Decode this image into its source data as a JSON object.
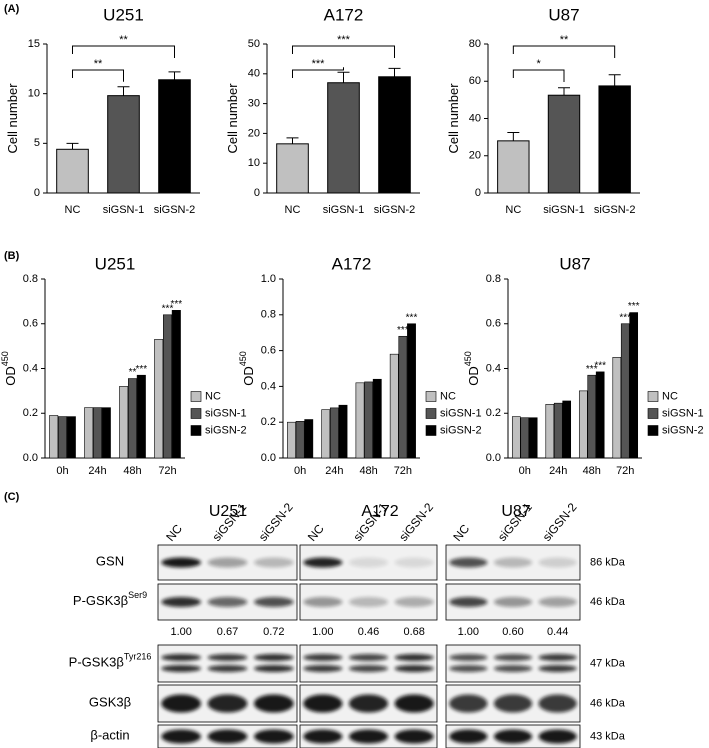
{
  "panels": [
    "(A)",
    "(B)",
    "(C)"
  ],
  "chart_data": [
    {
      "type": "bar",
      "title": "U251",
      "ylabel": "Cell number",
      "categories": [
        "NC",
        "siGSN-1",
        "siGSN-2"
      ],
      "values": [
        4.4,
        9.8,
        11.4
      ],
      "errors": [
        0.6,
        0.9,
        0.8
      ],
      "colors": [
        "#c0c0c0",
        "#555555",
        "#000000"
      ],
      "ylim": [
        0,
        15
      ],
      "yticks": [
        0,
        5,
        10,
        15
      ],
      "annotations": [
        {
          "from": "NC",
          "to": "siGSN-1",
          "text": "**"
        },
        {
          "from": "NC",
          "to": "siGSN-2",
          "text": "**"
        }
      ]
    },
    {
      "type": "bar",
      "title": "A172",
      "ylabel": "Cell number",
      "categories": [
        "NC",
        "siGSN-1",
        "siGSN-2"
      ],
      "values": [
        16.5,
        37,
        39
      ],
      "errors": [
        2,
        3.5,
        2.8
      ],
      "colors": [
        "#c0c0c0",
        "#555555",
        "#000000"
      ],
      "ylim": [
        0,
        50
      ],
      "yticks": [
        0,
        10,
        20,
        30,
        40,
        50
      ],
      "annotations": [
        {
          "from": "NC",
          "to": "siGSN-1",
          "text": "***"
        },
        {
          "from": "NC",
          "to": "siGSN-2",
          "text": "***"
        }
      ]
    },
    {
      "type": "bar",
      "title": "U87",
      "ylabel": "Cell number",
      "categories": [
        "NC",
        "siGSN-1",
        "siGSN-2"
      ],
      "values": [
        28,
        52.5,
        57.5
      ],
      "errors": [
        4.5,
        4,
        6
      ],
      "colors": [
        "#c0c0c0",
        "#555555",
        "#000000"
      ],
      "ylim": [
        0,
        80
      ],
      "yticks": [
        0,
        20,
        40,
        60,
        80
      ],
      "annotations": [
        {
          "from": "NC",
          "to": "siGSN-1",
          "text": "*"
        },
        {
          "from": "NC",
          "to": "siGSN-2",
          "text": "**"
        }
      ]
    },
    {
      "type": "grouped_bar",
      "title": "U251",
      "ylabel": "OD",
      "ylabel_sup": "450",
      "categories": [
        "0h",
        "24h",
        "48h",
        "72h"
      ],
      "series": [
        {
          "name": "NC",
          "color": "#c0c0c0",
          "values": [
            0.19,
            0.225,
            0.32,
            0.53
          ]
        },
        {
          "name": "siGSN-1",
          "color": "#555555",
          "values": [
            0.185,
            0.225,
            0.355,
            0.64
          ]
        },
        {
          "name": "siGSN-2",
          "color": "#000000",
          "values": [
            0.185,
            0.225,
            0.37,
            0.66
          ]
        }
      ],
      "ylim": [
        0,
        0.8
      ],
      "yticks": [
        {
          "value": 0,
          "label": "0.0"
        },
        0.2,
        0.4,
        0.6,
        0.8
      ],
      "legend": "right",
      "annotations": [
        {
          "category": "48h",
          "series": "siGSN-1",
          "text": "**"
        },
        {
          "category": "48h",
          "series": "siGSN-2",
          "text": "***"
        },
        {
          "category": "72h",
          "series": "siGSN-1",
          "text": "***"
        },
        {
          "category": "72h",
          "series": "siGSN-2",
          "text": "***"
        }
      ]
    },
    {
      "type": "grouped_bar",
      "title": "A172",
      "ylabel": "OD",
      "ylabel_sup": "450",
      "categories": [
        "0h",
        "24h",
        "48h",
        "72h"
      ],
      "series": [
        {
          "name": "NC",
          "color": "#c0c0c0",
          "values": [
            0.2,
            0.27,
            0.42,
            0.58
          ]
        },
        {
          "name": "siGSN-1",
          "color": "#555555",
          "values": [
            0.205,
            0.28,
            0.425,
            0.68
          ]
        },
        {
          "name": "siGSN-2",
          "color": "#000000",
          "values": [
            0.215,
            0.295,
            0.44,
            0.75
          ]
        }
      ],
      "ylim": [
        0,
        1.0
      ],
      "yticks": [
        {
          "value": 0,
          "label": "0.0"
        },
        0.2,
        0.4,
        0.6,
        0.8,
        {
          "value": 1,
          "label": "1.0"
        }
      ],
      "legend": "right",
      "annotations": [
        {
          "category": "72h",
          "series": "siGSN-1",
          "text": "***"
        },
        {
          "category": "72h",
          "series": "siGSN-2",
          "text": "***"
        }
      ]
    },
    {
      "type": "grouped_bar",
      "title": "U87",
      "ylabel": "OD",
      "ylabel_sup": "450",
      "categories": [
        "0h",
        "24h",
        "48h",
        "72h"
      ],
      "series": [
        {
          "name": "NC",
          "color": "#c0c0c0",
          "values": [
            0.185,
            0.24,
            0.3,
            0.45
          ]
        },
        {
          "name": "siGSN-1",
          "color": "#555555",
          "values": [
            0.18,
            0.245,
            0.37,
            0.6
          ]
        },
        {
          "name": "siGSN-2",
          "color": "#000000",
          "values": [
            0.18,
            0.255,
            0.385,
            0.65
          ]
        }
      ],
      "ylim": [
        0,
        0.8
      ],
      "yticks": [
        {
          "value": 0,
          "label": "0.0"
        },
        0.2,
        0.4,
        0.6,
        0.8
      ],
      "legend": "right",
      "annotations": [
        {
          "category": "48h",
          "series": "siGSN-1",
          "text": "***"
        },
        {
          "category": "48h",
          "series": "siGSN-2",
          "text": "***"
        },
        {
          "category": "72h",
          "series": "siGSN-1",
          "text": "***"
        },
        {
          "category": "72h",
          "series": "siGSN-2",
          "text": "***"
        }
      ]
    }
  ],
  "blot": {
    "cell_lines": [
      "U251",
      "A172",
      "U87"
    ],
    "lanes": [
      "NC",
      "siGSN-1",
      "siGSN-2"
    ],
    "rows": [
      {
        "label": "GSN",
        "kda": "86 kDa"
      },
      {
        "label": "P-GSK3β",
        "sup": "Ser9",
        "kda": "46 kDa"
      },
      {
        "label": "P-GSK3β",
        "sup": "Tyr216",
        "kda": "47 kDa"
      },
      {
        "label": "GSK3β",
        "kda": "46 kDa"
      },
      {
        "label": "β-actin",
        "kda": "43 kDa"
      }
    ],
    "quantification": [
      [
        "1.00",
        "0.67",
        "0.72"
      ],
      [
        "1.00",
        "0.46",
        "0.68"
      ],
      [
        "1.00",
        "0.60",
        "0.44"
      ]
    ]
  }
}
